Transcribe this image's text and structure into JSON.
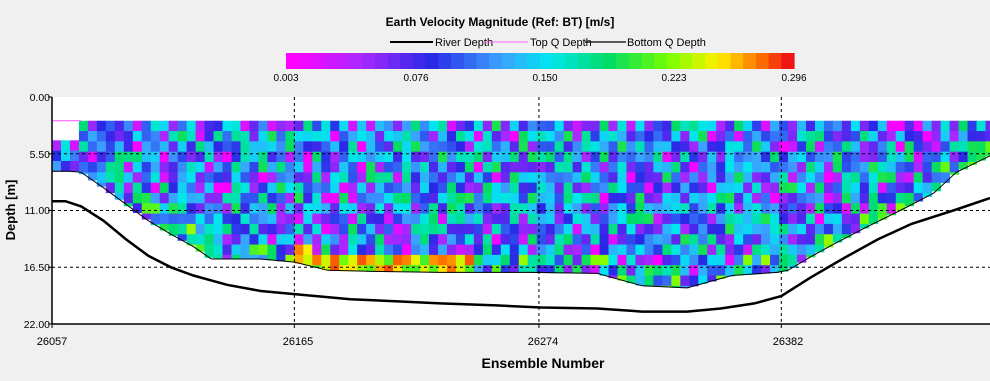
{
  "chart_data": {
    "type": "heatmap",
    "title": "Earth Velocity Magnitude (Ref: BT) [m/s]",
    "xlabel": "Ensemble Number",
    "ylabel": "Depth [m]",
    "legend": [
      {
        "name": "River Depth",
        "color": "#000000"
      },
      {
        "name": "Top Q Depth",
        "color": "#ff66ff"
      },
      {
        "name": "Bottom Q Depth",
        "color": "#000000"
      }
    ],
    "colorbar": {
      "ticks": [
        "0.003",
        "0.076",
        "0.150",
        "0.223",
        "0.296"
      ],
      "range": [
        0.003,
        0.296
      ],
      "position": "top"
    },
    "x_ticks": [
      "26057",
      "26165",
      "26274",
      "26382"
    ],
    "y_ticks": [
      "0.00",
      "5.50",
      "11.00",
      "16.50",
      "22.00"
    ],
    "xlim": [
      26057,
      26475
    ],
    "ylim": [
      0,
      22
    ],
    "grid": "dashed",
    "river_depth": {
      "x": [
        26057,
        26063,
        26070,
        26080,
        26090,
        26100,
        26110,
        26120,
        26135,
        26150,
        26165,
        26190,
        26210,
        26230,
        26255,
        26275,
        26300,
        26320,
        26340,
        26355,
        26370,
        26382,
        26395,
        26410,
        26425,
        26440,
        26460,
        26475
      ],
      "y": [
        10.1,
        10.1,
        10.6,
        12.0,
        13.8,
        15.4,
        16.5,
        17.3,
        18.2,
        18.8,
        19.1,
        19.6,
        19.8,
        20.0,
        20.2,
        20.4,
        20.5,
        20.8,
        20.8,
        20.5,
        20.0,
        19.3,
        17.5,
        15.6,
        13.8,
        12.3,
        10.9,
        9.8
      ]
    },
    "top_q_depth": {
      "x": [
        26057,
        26070
      ],
      "y": [
        2.3,
        2.3
      ]
    },
    "bottom_q_depth": {
      "x": [
        26057,
        26065,
        26070,
        26080,
        26090,
        26100,
        26110,
        26120,
        26128,
        26150,
        26165,
        26180,
        26200,
        26230,
        26255,
        26270,
        26300,
        26320,
        26340,
        26360,
        26380,
        26385,
        26395,
        26405,
        26420,
        26435,
        26450,
        26460,
        26475
      ],
      "y": [
        7.2,
        7.2,
        7.3,
        8.8,
        10.4,
        12.0,
        13.3,
        14.5,
        15.7,
        15.7,
        16.0,
        16.8,
        16.9,
        17.0,
        17.0,
        17.0,
        17.1,
        18.3,
        18.5,
        17.3,
        17.0,
        16.8,
        15.5,
        14.3,
        12.6,
        11.0,
        9.3,
        7.3,
        5.7
      ]
    },
    "grid_values": {
      "ensemble_range": [
        26057,
        26475
      ],
      "depth_range": [
        2.3,
        18.6
      ],
      "note": "Dense velocity-magnitude grid from 0.003 to 0.296 m/s; approximately 0.05–0.20 m/s throughout, with higher values (0.22–0.29 m/s) in a band near 16.5–17.5 m depth between ensembles 26165 and 26240."
    }
  }
}
